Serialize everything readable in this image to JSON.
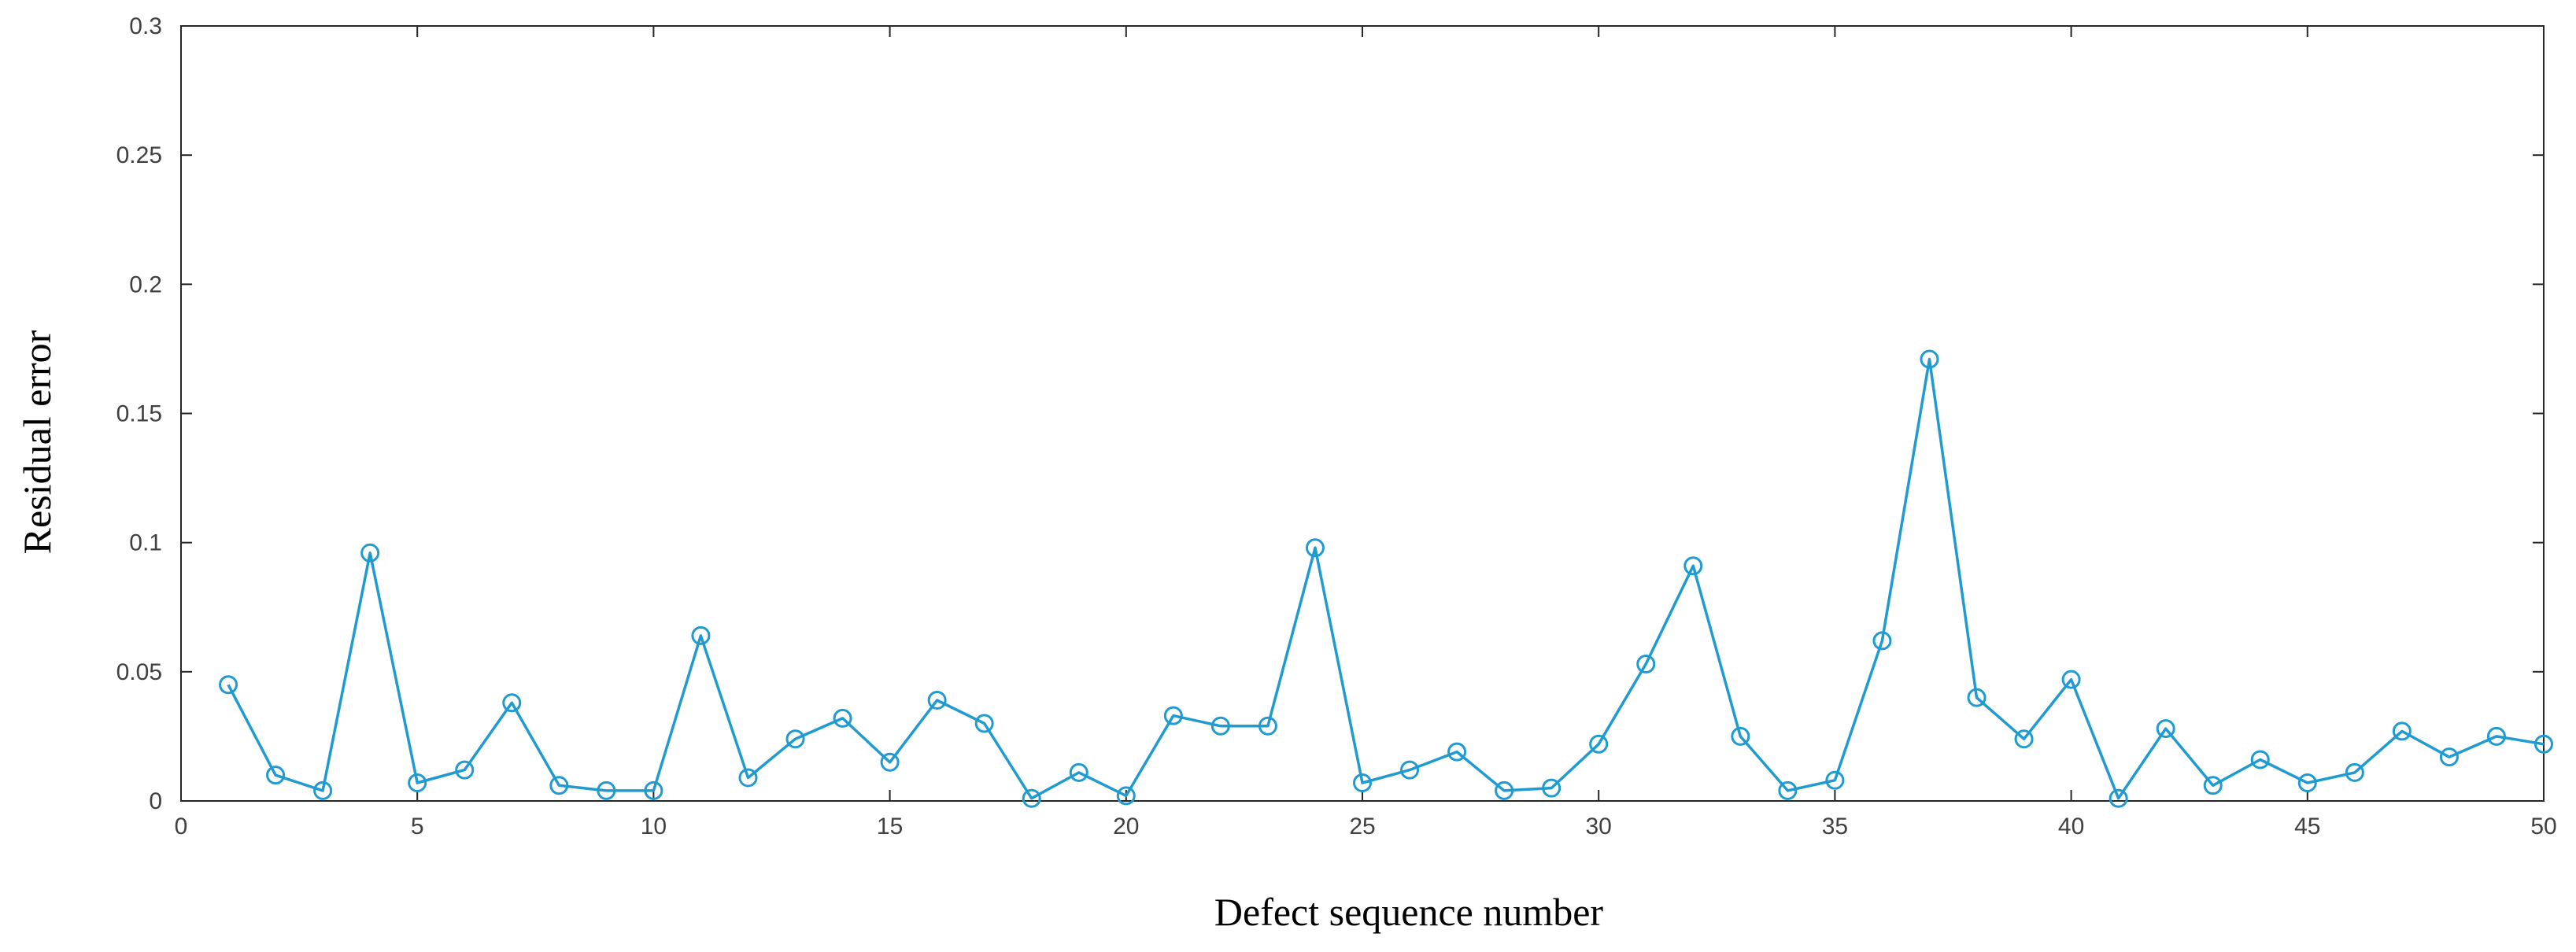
{
  "chart_data": {
    "type": "line",
    "xlabel": "Defect sequence number",
    "ylabel": "Residual error",
    "xlim": [
      0,
      50
    ],
    "ylim": [
      0,
      0.3
    ],
    "xticks": [
      "0",
      "5",
      "10",
      "15",
      "20",
      "25",
      "30",
      "35",
      "40",
      "45",
      "50"
    ],
    "yticks": [
      "0",
      "0.05",
      "0.1",
      "0.15",
      "0.2",
      "0.25",
      "0.3"
    ],
    "grid": false,
    "marker": "circle",
    "line_color": "#1f9bd1",
    "series": [
      {
        "x": [
          1,
          2,
          3,
          4,
          5,
          6,
          7,
          8,
          9,
          10,
          11,
          12,
          13,
          14,
          15,
          16,
          17,
          18,
          19,
          20,
          21,
          22,
          23,
          24,
          25,
          26,
          27,
          28,
          29,
          30,
          31,
          32,
          33,
          34,
          35,
          36,
          37,
          38,
          39,
          40,
          41,
          42,
          43,
          44,
          45,
          46,
          47,
          48,
          49,
          50
        ],
        "values": [
          0.045,
          0.01,
          0.004,
          0.096,
          0.007,
          0.012,
          0.038,
          0.006,
          0.004,
          0.004,
          0.064,
          0.009,
          0.024,
          0.032,
          0.015,
          0.039,
          0.03,
          0.001,
          0.011,
          0.002,
          0.033,
          0.029,
          0.029,
          0.098,
          0.007,
          0.012,
          0.019,
          0.004,
          0.005,
          0.022,
          0.053,
          0.091,
          0.025,
          0.004,
          0.008,
          0.062,
          0.171,
          0.04,
          0.024,
          0.047,
          0.001,
          0.028,
          0.006,
          0.016,
          0.007,
          0.011,
          0.027,
          0.017,
          0.025,
          0.022
        ]
      }
    ]
  }
}
